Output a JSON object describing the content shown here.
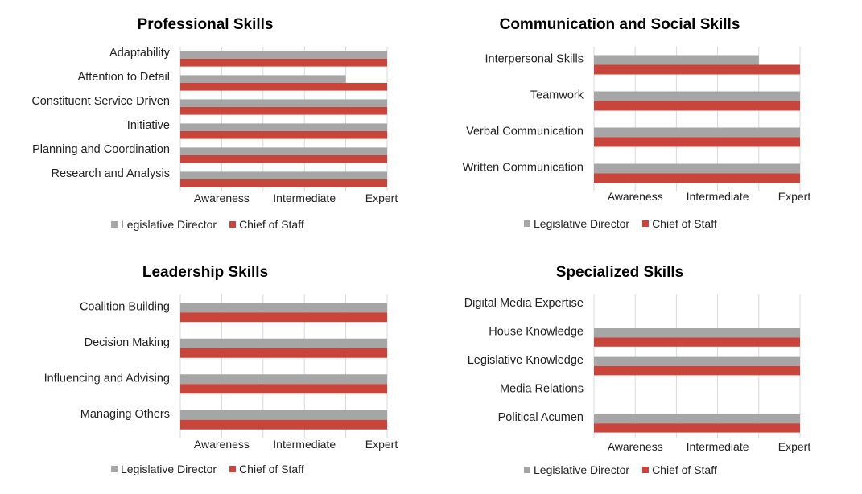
{
  "colors": {
    "legislative_director": "#a6a6a6",
    "chief_of_staff": "#c9453b",
    "grid": "#d9d9d9"
  },
  "chart_data": [
    {
      "type": "bar",
      "orientation": "horizontal",
      "title": "Professional Skills",
      "categories": [
        "Adaptability",
        "Attention to Detail",
        "Constituent Service Driven",
        "Initiative",
        "Planning and Coordination",
        "Research and Analysis"
      ],
      "x_ticks": [
        "Awareness",
        "Intermediate",
        "Expert"
      ],
      "xlim": [
        0,
        5
      ],
      "series": [
        {
          "name": "Legislative Director",
          "values": [
            5,
            4,
            5,
            5,
            5,
            5
          ]
        },
        {
          "name": "Chief of Staff",
          "values": [
            5,
            5,
            5,
            5,
            5,
            5
          ]
        }
      ],
      "legend": "bottom"
    },
    {
      "type": "bar",
      "orientation": "horizontal",
      "title": "Communication and Social Skills",
      "categories": [
        "Interpersonal Skills",
        "Teamwork",
        "Verbal Communication",
        "Written Communication"
      ],
      "x_ticks": [
        "Awareness",
        "Intermediate",
        "Expert"
      ],
      "xlim": [
        0,
        5
      ],
      "series": [
        {
          "name": "Legislative Director",
          "values": [
            4,
            5,
            5,
            5
          ]
        },
        {
          "name": "Chief of Staff",
          "values": [
            5,
            5,
            5,
            5
          ]
        }
      ],
      "legend": "bottom"
    },
    {
      "type": "bar",
      "orientation": "horizontal",
      "title": "Leadership Skills",
      "categories": [
        "Coalition Building",
        "Decision Making",
        "Influencing and Advising",
        "Managing Others"
      ],
      "x_ticks": [
        "Awareness",
        "Intermediate",
        "Expert"
      ],
      "xlim": [
        0,
        5
      ],
      "series": [
        {
          "name": "Legislative Director",
          "values": [
            5,
            5,
            5,
            5
          ]
        },
        {
          "name": "Chief of Staff",
          "values": [
            5,
            5,
            5,
            5
          ]
        }
      ],
      "legend": "bottom"
    },
    {
      "type": "bar",
      "orientation": "horizontal",
      "title": "Specialized Skills",
      "categories": [
        "Digital Media Expertise",
        "House Knowledge",
        "Legislative Knowledge",
        "Media Relations",
        "Political Acumen"
      ],
      "x_ticks": [
        "Awareness",
        "Intermediate",
        "Expert"
      ],
      "xlim": [
        0,
        5
      ],
      "series": [
        {
          "name": "Legislative Director",
          "values": [
            0,
            5,
            5,
            0,
            5
          ]
        },
        {
          "name": "Chief of Staff",
          "values": [
            0,
            5,
            5,
            0,
            5
          ]
        }
      ],
      "legend": "bottom"
    }
  ]
}
